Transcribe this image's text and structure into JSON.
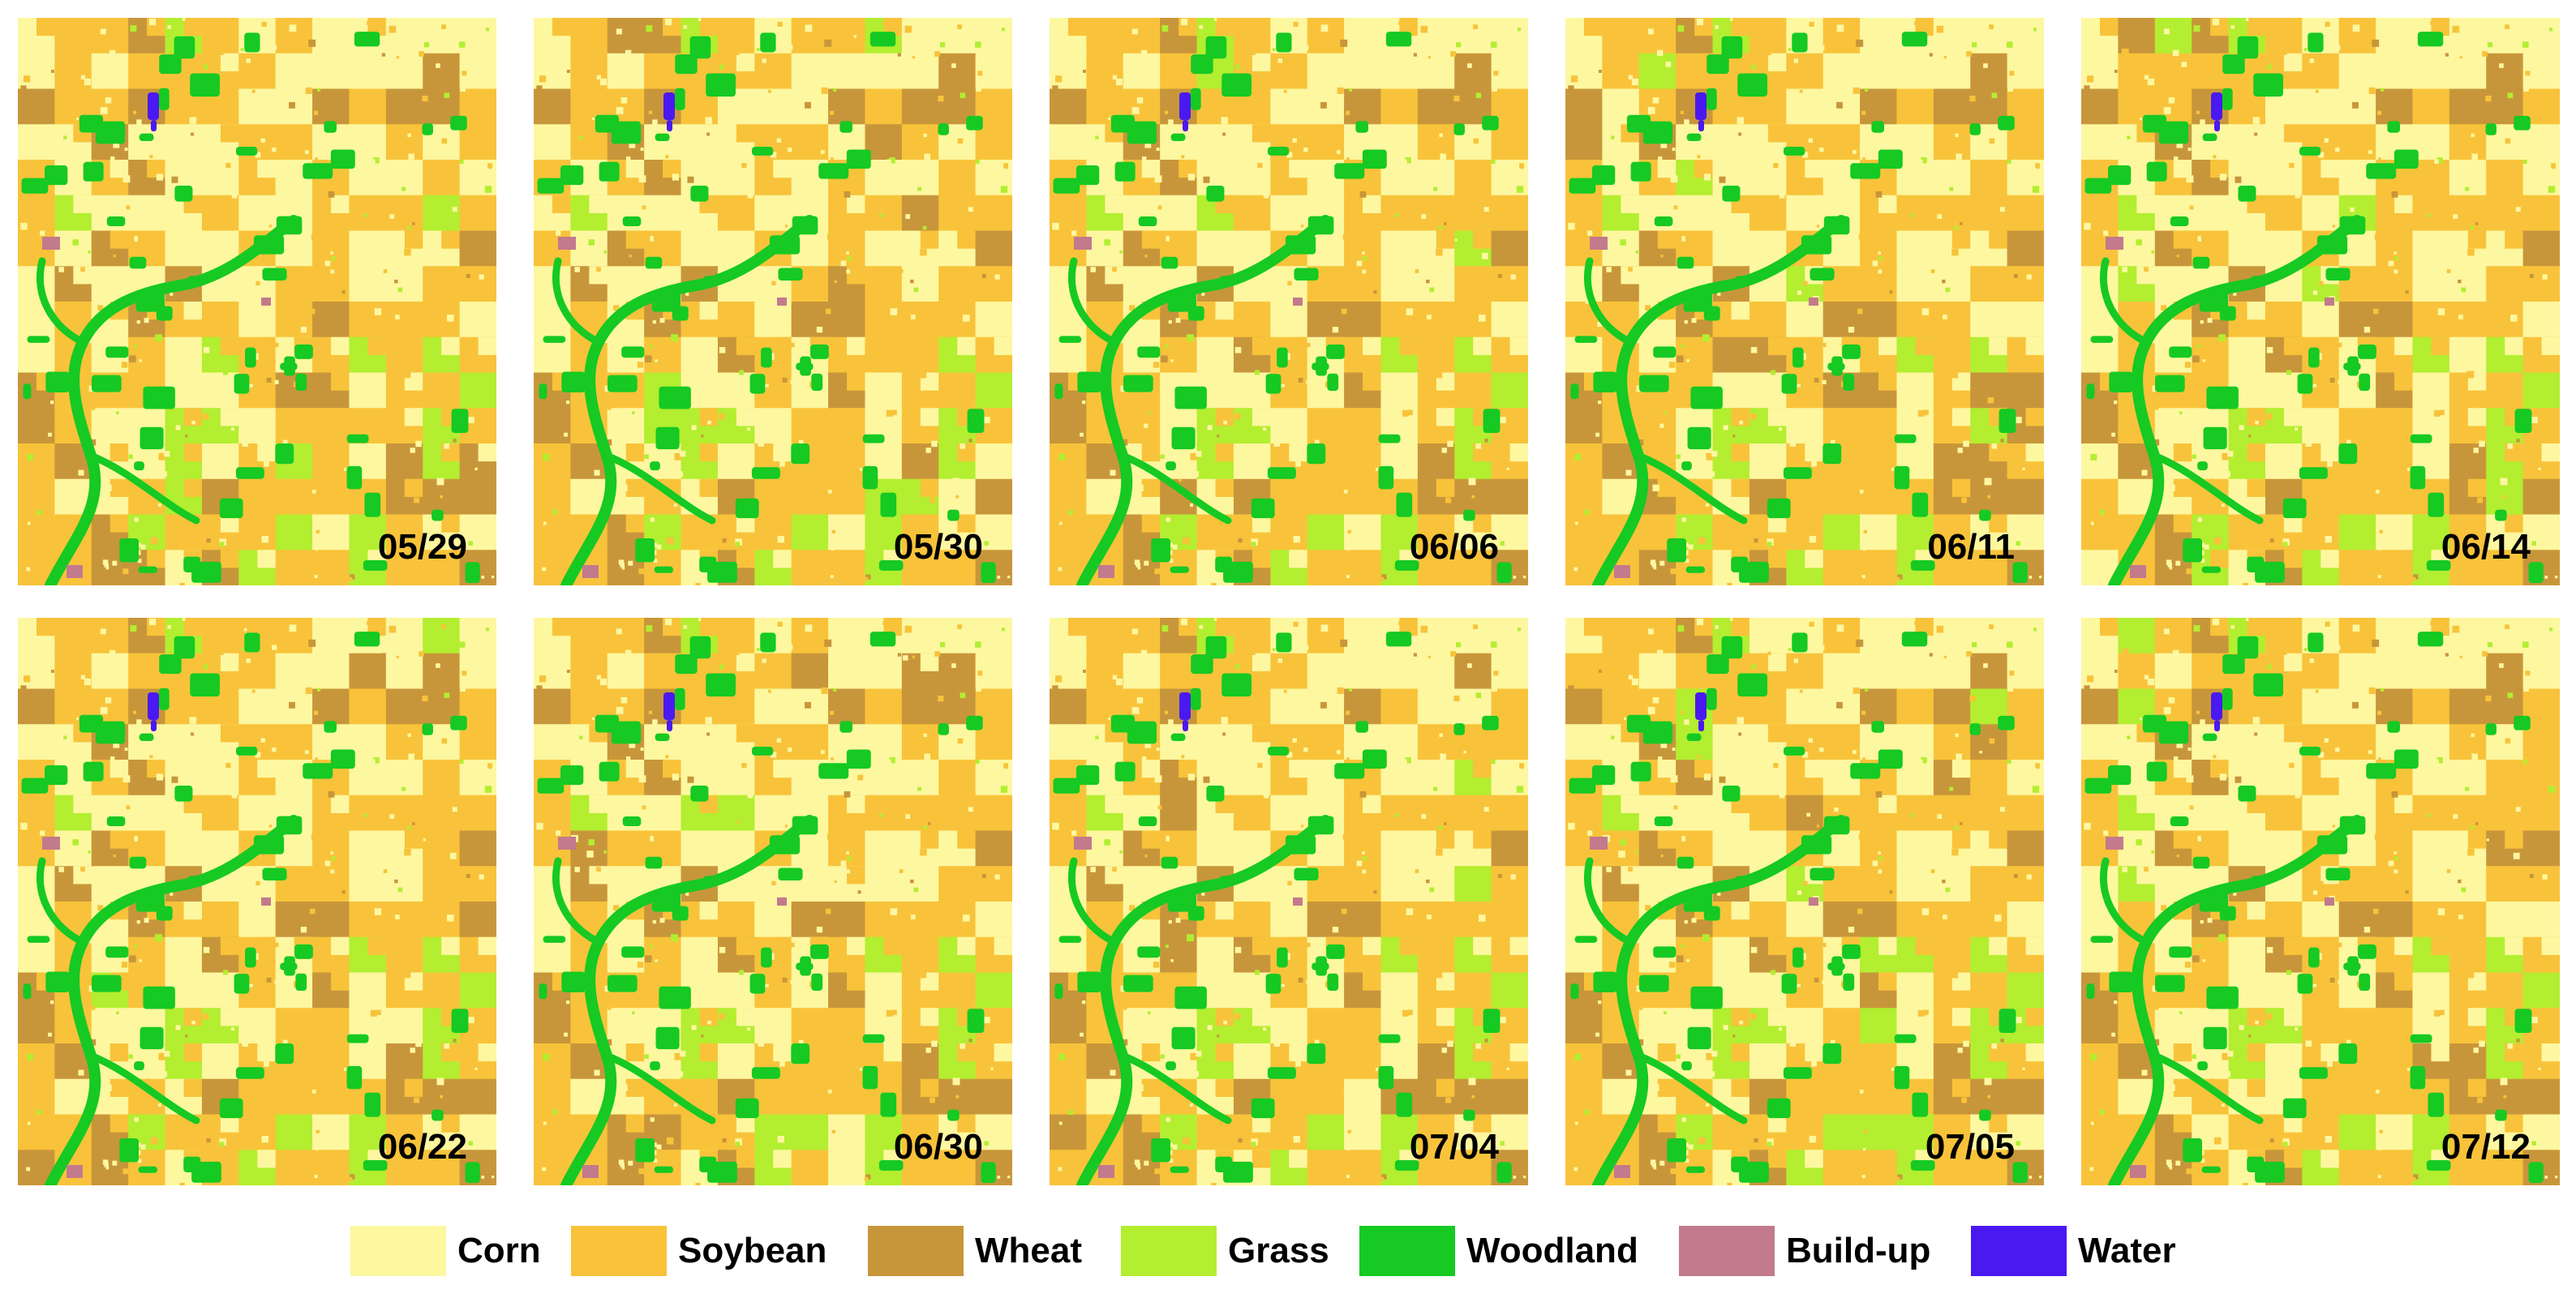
{
  "map": {
    "panels": [
      {
        "date": "05/29"
      },
      {
        "date": "05/30"
      },
      {
        "date": "06/06"
      },
      {
        "date": "06/11"
      },
      {
        "date": "06/14"
      },
      {
        "date": "06/22"
      },
      {
        "date": "06/30"
      },
      {
        "date": "07/04"
      },
      {
        "date": "07/05"
      },
      {
        "date": "07/12"
      }
    ]
  },
  "legend": {
    "items": [
      {
        "label": "Corn",
        "color": "#fdf7a0"
      },
      {
        "label": "Soybean",
        "color": "#f8c33a"
      },
      {
        "label": "Wheat",
        "color": "#c8963a"
      },
      {
        "label": "Grass",
        "color": "#b3ee30"
      },
      {
        "label": "Woodland",
        "color": "#16c923"
      },
      {
        "label": "Build-up",
        "color": "#c27a8c"
      },
      {
        "label": "Water",
        "color": "#4a19f0"
      }
    ]
  }
}
